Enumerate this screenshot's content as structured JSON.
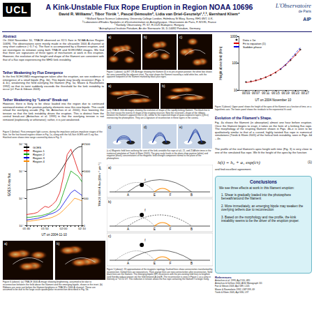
{
  "header": {
    "logo_left": "UCL",
    "logo_right": "L'Observatoire",
    "logo_right_sub": "de Paris",
    "logo_aip": "AIP",
    "title": "A Kink-Unstable Flux Rope Eruption in Region NOAA 10696",
    "authors": "David R. Williams¹, Tibor Török ¹, Pascal Démoulin², Lidia van Driel-Gesztelyi¹,²,³, Bernhard Kliem⁴",
    "affiliations": [
      "¹ Mullard Space Science Laboratory, University College London, Holmbury St Mary, Surrey, RH5 6NT, U.K.",
      "² Laboratoire d'Etudes Spatiales et d'Instrumentation en Astrophysique, Observatoire de Paris, F-92195, France",
      "³ Konkoly Observatory, Pf. 67, H-1525 Budapest, Hungary",
      "⁴Astrophysical Institute Potsdam, An der Sternwarte 16, D-14482 Potsdam, Germany"
    ]
  },
  "left_column": {
    "sections": [
      {
        "heading": "Abstract",
        "text": "On 2004 November 10, TRACE observed an X2.5 flare in NOAA Active Region 10696. The observations were mostly made in the ultraviolet 1600 Å channel at very short cadence (~3-7 s). The flare is accompanied by a filament eruption, and we investigate its initiation using both TRACE and SOHO/MDI images. We find that there are signatures of three types of mechanism at work in this eruption. However, the evolution of the height and shape of the filament are consistent with that of a flux rope experiencing the MHD kink instability."
      },
      {
        "heading": "Tether Weakening by Flux Emergence",
        "text": "In the first SOHO/MDI magnetogram taken after the eruption, we see evidence of emergence of a small bipole (Fig. 1b). This bipole may locally reconnect (Figs. 1 & 4c), weakening the field overlying the filament (Fig. 5a; Moore & Roumeliotis 1992) so that its twist suddenly exceeds the threshold for the kink instability to occur (cf. Fan & Gibson 2003)."
      },
      {
        "heading": "Tether Weakening by \"Lateral\" Break-out",
        "text": "However, there is likely to be shear loaded into the region due to continued westward motion of the positive-polarity elements near this new bipole. This could reload the overlying arcade (Fig. 5b; Antiochos et al. 2000), thus lowering the tension so that the kink instability drives the eruption. This is distinct from the central break-out (Antiochos et al. 1999) in that the overlying tension is not removed (explosively or otherwise); rather, it is just weakened."
      }
    ],
    "chart_caption": "Figure 5 (below): Post-emergent light curves, during the impulsive and pre-impulsive stages of the flare, for the four boxed regions shown in Fig. 1a, along with the full-Sun GOES soft X-ray flux. Hatched zone shows time range covered by data in Fig. 3.",
    "fig6": {
      "panels": [
        "a)",
        "b)"
      ],
      "caption": "Figure 6 (above): (a) TRACE 1600 Å image showing brightening, assumed to be due to reconnection between the field above the filament and the emerging bipole, shown in the inset. (b) Ribbons are seen just before the filament brightens in TRACE's 1600 Å channel. These are assumed to be due to the large-scale quadrupolar reconnection described in Fig. 5b."
    }
  },
  "middle_column": {
    "fig1": {
      "panels": [
        "a)",
        "b)",
        "c)"
      ],
      "caption": "Figure 1 (above): (a) EIT 195 Å image showing the filament (f) in its pre-eruption position; the white box shows the area covered by the adjacent chart. The inset shows the filament traced by a solid white line, with the apparent footpoints of the filament marked by black plus signs."
    },
    "fig4ab": {
      "panels": [
        "a)",
        "b)"
      ],
      "caption": "(a-b) TRACE 1600 Å images showing the evolution of shape of the rapidly kinking filament. The black line in the inset traces the inverse-S shape of the erupting structure. Note the reversed L-shape of the ribbons between the filament's apparent feet in (b), similar to the expected shape of quasi-separatrix layers (QSLs) intersecting the photosphere. They are a signature of reconnection in these layers in the corona."
    },
    "fig4ce": {
      "panels": [
        "c)",
        "d)",
        "e)"
      ],
      "caption": "(c-e) Magnetic field lines outlining the core of the kink-unstable flux rope at t=0, 21, and 25 Alfvén times in the numerical simulation of Török & Kliem (2005). The grey scale levels in the plane show positive (white) and negative (black) concentrations of the magnetic field strength component normal to the plane of the photosphere."
    },
    "fig5": {
      "panels": [
        "a)",
        "b)",
        "c)"
      ],
      "labels": [
        "A",
        "B",
        "E",
        "F",
        "f"
      ],
      "caption": "Figure 5 (above): 2D approximation of the magnetic topology. Dashed lines show connectivities transformed by reconnection. Dotted lines are separatrices. Thick orange lines are new connectivities after reconnection. Solid black lines are the filament. The emerging bipole (EF) reconnects with the pre-existing field lines to lengthen (and thereby reduce tension on) the field between A and B. The reconnection is seen in Figure 1 as a jump in intensity at ~01:51 UT. This reduction in tension allows the flux rope containing the filament f to begin rising."
    }
  },
  "right_column": {
    "fig3_caption": "Figure 3 (above): Upper panel shows the height of the apex of the filament as a function of time, on a logarithmic axis. The lower panel shows the residuals to the exponential fit used.",
    "evolution": {
      "heading": "Evolution of the Filament's Shape.",
      "paragraphs": [
        "Fig. 4a shows the filament (in absorption) almost one hour before eruption. Once the filament begins to erupt, it takes on the form of a kinking flux rope. The morphology of the erupting filament shown in Figs. 4b–e is seen to be qualitatively similar to that of a curved, highly twisted flux rope in numerical simulations (Török & Kliem 2005) of the helical kink instability, seen in Figs. 4d – 4e.",
        "The profile of the real filament's apex height with time (Fig. 3) is very close to one of the simulated flux rope. We fit the height of the apex by the function"
      ],
      "equation": "h(t) = h₀ + a₁ exp(t/τ)",
      "equation_number": "(1)",
      "after": "and find excellent agreement."
    },
    "conclusions": {
      "heading": "Conclusions",
      "intro": "We see three effects at work in this filament eruption:",
      "items": [
        "1. Shear is gradually loaded into the photosphere beneath/around the filament",
        "2. More immediately, an emerging bipole may weaken the overlying tethers due to reconnection",
        "3. Based on the morphology and rise profile, the kink instability seems to be the driver of the eruption proper."
      ]
    },
    "references": {
      "heading": "References",
      "items": [
        "Antiochos et al. 1999, ApJ 510, 485",
        "Antiochos & DeVore 2000, AGU Monograph 111",
        "Fan & Gibson 2003, ApJ 589, L105",
        "Moore & Roumeliotis 1992, LNP 399, 69",
        "Török & Kliem 2005, ApJ 630, L97"
      ]
    }
  },
  "chart_data": [
    {
      "type": "line",
      "xlabel": "UT on 2004 November 10",
      "ylabel": "Height above limb (Mm)",
      "x": [
        3,
        5,
        7,
        9,
        11,
        13,
        15,
        17,
        19,
        21,
        23,
        25
      ],
      "series": [
        {
          "name": "Data ± 1σ",
          "type": "scatter",
          "color": "#000000",
          "marker": "circle",
          "values": [
            20,
            21,
            23,
            26,
            30,
            36,
            45,
            60,
            85,
            130,
            200,
            320
          ]
        },
        {
          "name": "Fit to equation (1)",
          "type": "line",
          "color": "#e00000",
          "line_style": "solid",
          "values": [
            19,
            20.5,
            22.5,
            25.5,
            30,
            36.5,
            46,
            61,
            86,
            128,
            198,
            315
          ]
        },
        {
          "name": "Sudden phase",
          "type": "line",
          "color": "#0000dd",
          "line_style": "dashed",
          "values": [
            null,
            null,
            null,
            null,
            null,
            null,
            null,
            60,
            88,
            140,
            230,
            380
          ]
        }
      ],
      "log": "y",
      "xlim": [
        0,
        28
      ],
      "xticks": [
        {
          "value": 3,
          "label": "00:03"
        },
        {
          "value": 7,
          "label": "00:07"
        },
        {
          "value": 11,
          "label": "00:11"
        },
        {
          "value": 15,
          "label": "00:15"
        },
        {
          "value": 19,
          "label": "00:19"
        },
        {
          "value": 23,
          "label": "00:23"
        },
        {
          "value": 27,
          "label": "00:27"
        }
      ],
      "ylim": [
        10,
        1000
      ],
      "yticks": [
        10,
        100,
        1000
      ],
      "grid": false,
      "legend": "upper left"
    },
    {
      "type": "line",
      "xlabel": "UT on 2004-11-10",
      "ylabel": "GOES X-ray flux",
      "y2label": "TRACE 1600 Å flux [DN s⁻¹ pix⁻¹]",
      "categories": [
        "01:40",
        null,
        null,
        null,
        null,
        "01:50",
        null,
        null,
        null,
        null,
        "02:00",
        null,
        null,
        null,
        null,
        "02:10"
      ],
      "series": [
        {
          "name": "GOES",
          "color": "#000000",
          "line_style": "solid",
          "values": [
            2e-06,
            2.1e-06,
            2.2e-06,
            2.4e-06,
            2.6e-06,
            3e-06,
            3.5e-06,
            4.5e-06,
            6e-06,
            9e-06,
            1.5e-05,
            2.5e-05,
            4e-05,
            6e-05,
            7.5e-05,
            8e-05
          ]
        },
        {
          "name": "Region 1",
          "color": "#e00000",
          "line_style": "solid",
          "axis": "y2",
          "values": [
            200,
            210,
            220,
            240,
            300,
            350,
            330,
            380,
            450,
            600,
            900,
            1300,
            1400,
            1200,
            1000,
            900
          ]
        },
        {
          "name": "Region 2",
          "color": "#00a000",
          "line_style": "solid",
          "axis": "y2",
          "values": [
            150,
            150,
            160,
            170,
            180,
            200,
            220,
            260,
            300,
            400,
            600,
            800,
            1000,
            950,
            900,
            800
          ]
        },
        {
          "name": "Region 3",
          "color": "#0000e0",
          "line_style": "solid",
          "axis": "y2",
          "values": [
            100,
            110,
            120,
            130,
            150,
            170,
            200,
            220,
            250,
            300,
            400,
            500,
            600,
            650,
            600,
            550
          ]
        },
        {
          "name": "Region 4",
          "color": "#ff8c00",
          "line_style": "solid",
          "axis": "y2",
          "values": [
            80,
            80,
            90,
            100,
            110,
            120,
            130,
            150,
            180,
            220,
            280,
            350,
            420,
            500,
            480,
            450
          ]
        }
      ],
      "log": "y",
      "ylim": [
        1e-07,
        0.0001
      ],
      "yticks": [
        {
          "value": 1e-07,
          "label": "10⁻⁷"
        },
        {
          "value": 1e-06,
          "label": "10⁻⁶"
        },
        {
          "value": 1e-05,
          "label": "10⁻⁵"
        },
        {
          "value": 0.0001,
          "label": "10⁻⁴"
        }
      ],
      "y2lim": [
        0,
        1500
      ],
      "y2ticks": [
        0,
        500,
        1000,
        1500
      ],
      "grid": false,
      "legend": "upper left"
    }
  ]
}
